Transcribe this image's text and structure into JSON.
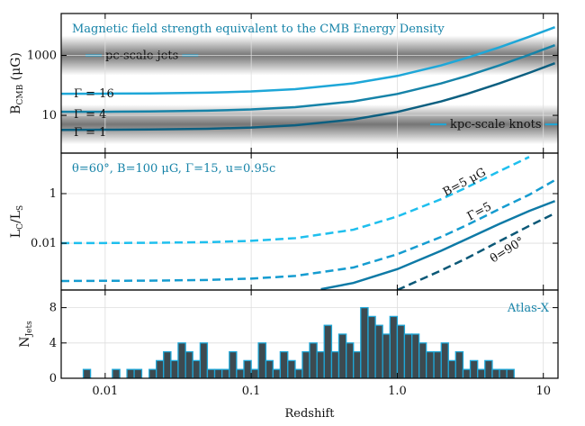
{
  "chart_data": [
    {
      "type": "line",
      "yscale": "log",
      "xscale": "log",
      "annotation": "Magnetic field strength equivalent to the CMB Energy Density",
      "ylabel": [
        "B",
        "CMB",
        " (μG)"
      ],
      "xlim": [
        0.005,
        12.6
      ],
      "xticks": [
        0.01,
        0.1,
        {
          "value": 1,
          "label": "1.0"
        },
        10
      ],
      "ylim": [
        0.55,
        25000
      ],
      "yticks": [
        10,
        1000
      ],
      "grid": true,
      "bands": [
        {
          "center": 1000,
          "label": "pc-scale jets"
        },
        {
          "center": 5,
          "label": "kpc-scale knots"
        }
      ],
      "band_color": "#1ea7d8",
      "x": [
        0.005,
        0.01,
        0.02,
        0.05,
        0.1,
        0.2,
        0.5,
        1,
        2,
        3,
        5,
        8,
        12
      ],
      "series": [
        {
          "name": "Γ = 16",
          "color": "#1ea7d8",
          "style": "solid",
          "values": [
            52.3,
            53,
            53.9,
            57.2,
            62.7,
            74.6,
            117,
            207,
            467,
            829,
            1866,
            4199,
            8761
          ]
        },
        {
          "name": "Γ = 4",
          "color": "#1683a8",
          "style": "solid",
          "values": [
            13.1,
            13.2,
            13.5,
            14.3,
            15.7,
            18.7,
            29.2,
            51.8,
            117,
            207,
            467,
            1050,
            2190
          ]
        },
        {
          "name": "Γ = 1",
          "color": "#0c5f80",
          "style": "solid",
          "values": [
            3.27,
            3.31,
            3.37,
            3.57,
            3.92,
            4.67,
            7.29,
            12.96,
            29.2,
            51.8,
            116.6,
            262,
            548
          ]
        }
      ]
    },
    {
      "type": "line",
      "yscale": "log",
      "xscale": "log",
      "annotation": "θ=60°,  B=100 μG,  Γ=15,  u=0.95c",
      "ylabel": [
        "L",
        "C",
        "/L",
        "S"
      ],
      "xlim": [
        0.005,
        12.6
      ],
      "xticks": [
        0.01,
        0.1,
        {
          "value": 1,
          "label": "1.0"
        },
        10
      ],
      "ylim": [
        0.00013,
        43
      ],
      "yticks": [
        0.01,
        1
      ],
      "grid": true,
      "series": [
        {
          "name": "B=5 μG",
          "color": "#1ebfee",
          "style": "dashed",
          "x": [
            0.005,
            0.01,
            0.02,
            0.05,
            0.1,
            0.2,
            0.5,
            1,
            2,
            3,
            5,
            8
          ],
          "values": [
            0.0101,
            0.0102,
            0.0104,
            0.011,
            0.0125,
            0.016,
            0.035,
            0.12,
            0.6,
            1.8,
            8,
            30
          ]
        },
        {
          "name": "Γ=5",
          "color": "#159cd0",
          "style": "dashed",
          "x": [
            0.005,
            0.01,
            0.02,
            0.05,
            0.1,
            0.2,
            0.5,
            1,
            2,
            3,
            5,
            8,
            12
          ],
          "values": [
            0.0003,
            0.000306,
            0.00031,
            0.00033,
            0.000375,
            0.00048,
            0.00105,
            0.0036,
            0.018,
            0.054,
            0.24,
            0.9,
            3.5
          ]
        },
        {
          "color": "#0e7aa6",
          "style": "solid",
          "x": [
            0.3,
            0.5,
            1,
            2,
            3,
            5,
            8,
            12
          ],
          "values": [
            0.00014,
            0.00025,
            0.0009,
            0.005,
            0.015,
            0.06,
            0.2,
            0.5
          ]
        },
        {
          "name": "θ=90°",
          "color": "#0b5877",
          "style": "dashed",
          "x": [
            1,
            2,
            3,
            5,
            8,
            12
          ],
          "values": [
            0.00013,
            0.0008,
            0.0025,
            0.012,
            0.05,
            0.16
          ]
        }
      ]
    },
    {
      "type": "histogram",
      "xscale": "log",
      "annotation": "Atlas-X",
      "ylabel": [
        "N",
        "Jets"
      ],
      "xlabel": "Redshift",
      "xlim": [
        0.005,
        12.6
      ],
      "xticks": [
        0.01,
        0.1,
        {
          "value": 1,
          "label": "1.0"
        },
        10
      ],
      "ylim": [
        0,
        10
      ],
      "yticks": [
        0,
        4,
        8
      ],
      "grid": true,
      "color": "#3d4a50",
      "edgecolor": "#1ea7d8",
      "bins": [
        0.00501,
        0.00562,
        0.00631,
        0.00708,
        0.00794,
        0.00891,
        0.01,
        0.0112,
        0.0126,
        0.0141,
        0.0158,
        0.0178,
        0.02,
        0.0224,
        0.0251,
        0.0282,
        0.0316,
        0.0355,
        0.0398,
        0.0447,
        0.0501,
        0.0562,
        0.0631,
        0.0708,
        0.0794,
        0.0891,
        0.1,
        0.112,
        0.126,
        0.141,
        0.158,
        0.178,
        0.2,
        0.224,
        0.251,
        0.282,
        0.316,
        0.355,
        0.398,
        0.447,
        0.501,
        0.562,
        0.631,
        0.708,
        0.794,
        0.891,
        1,
        1.12,
        1.26,
        1.41,
        1.58,
        1.78,
        2,
        2.24,
        2.51,
        2.82,
        3.16,
        3.55,
        3.98,
        4.47,
        5.01,
        5.62,
        6.31,
        7.08,
        7.94,
        8.91,
        10,
        11.2,
        12.6
      ],
      "values": [
        0,
        0,
        0,
        1,
        0,
        0,
        0,
        1,
        0,
        1,
        1,
        0,
        1,
        2,
        3,
        2,
        4,
        3,
        2,
        4,
        1,
        1,
        1,
        3,
        1,
        2,
        1,
        4,
        2,
        1,
        3,
        2,
        1,
        3,
        4,
        3,
        6,
        3,
        5,
        4,
        3,
        8,
        7,
        6,
        5,
        7,
        6,
        5,
        5,
        4,
        3,
        3,
        4,
        2,
        3,
        1,
        2,
        1,
        2,
        1,
        1,
        1,
        0,
        0,
        0,
        0,
        0,
        0
      ]
    }
  ]
}
